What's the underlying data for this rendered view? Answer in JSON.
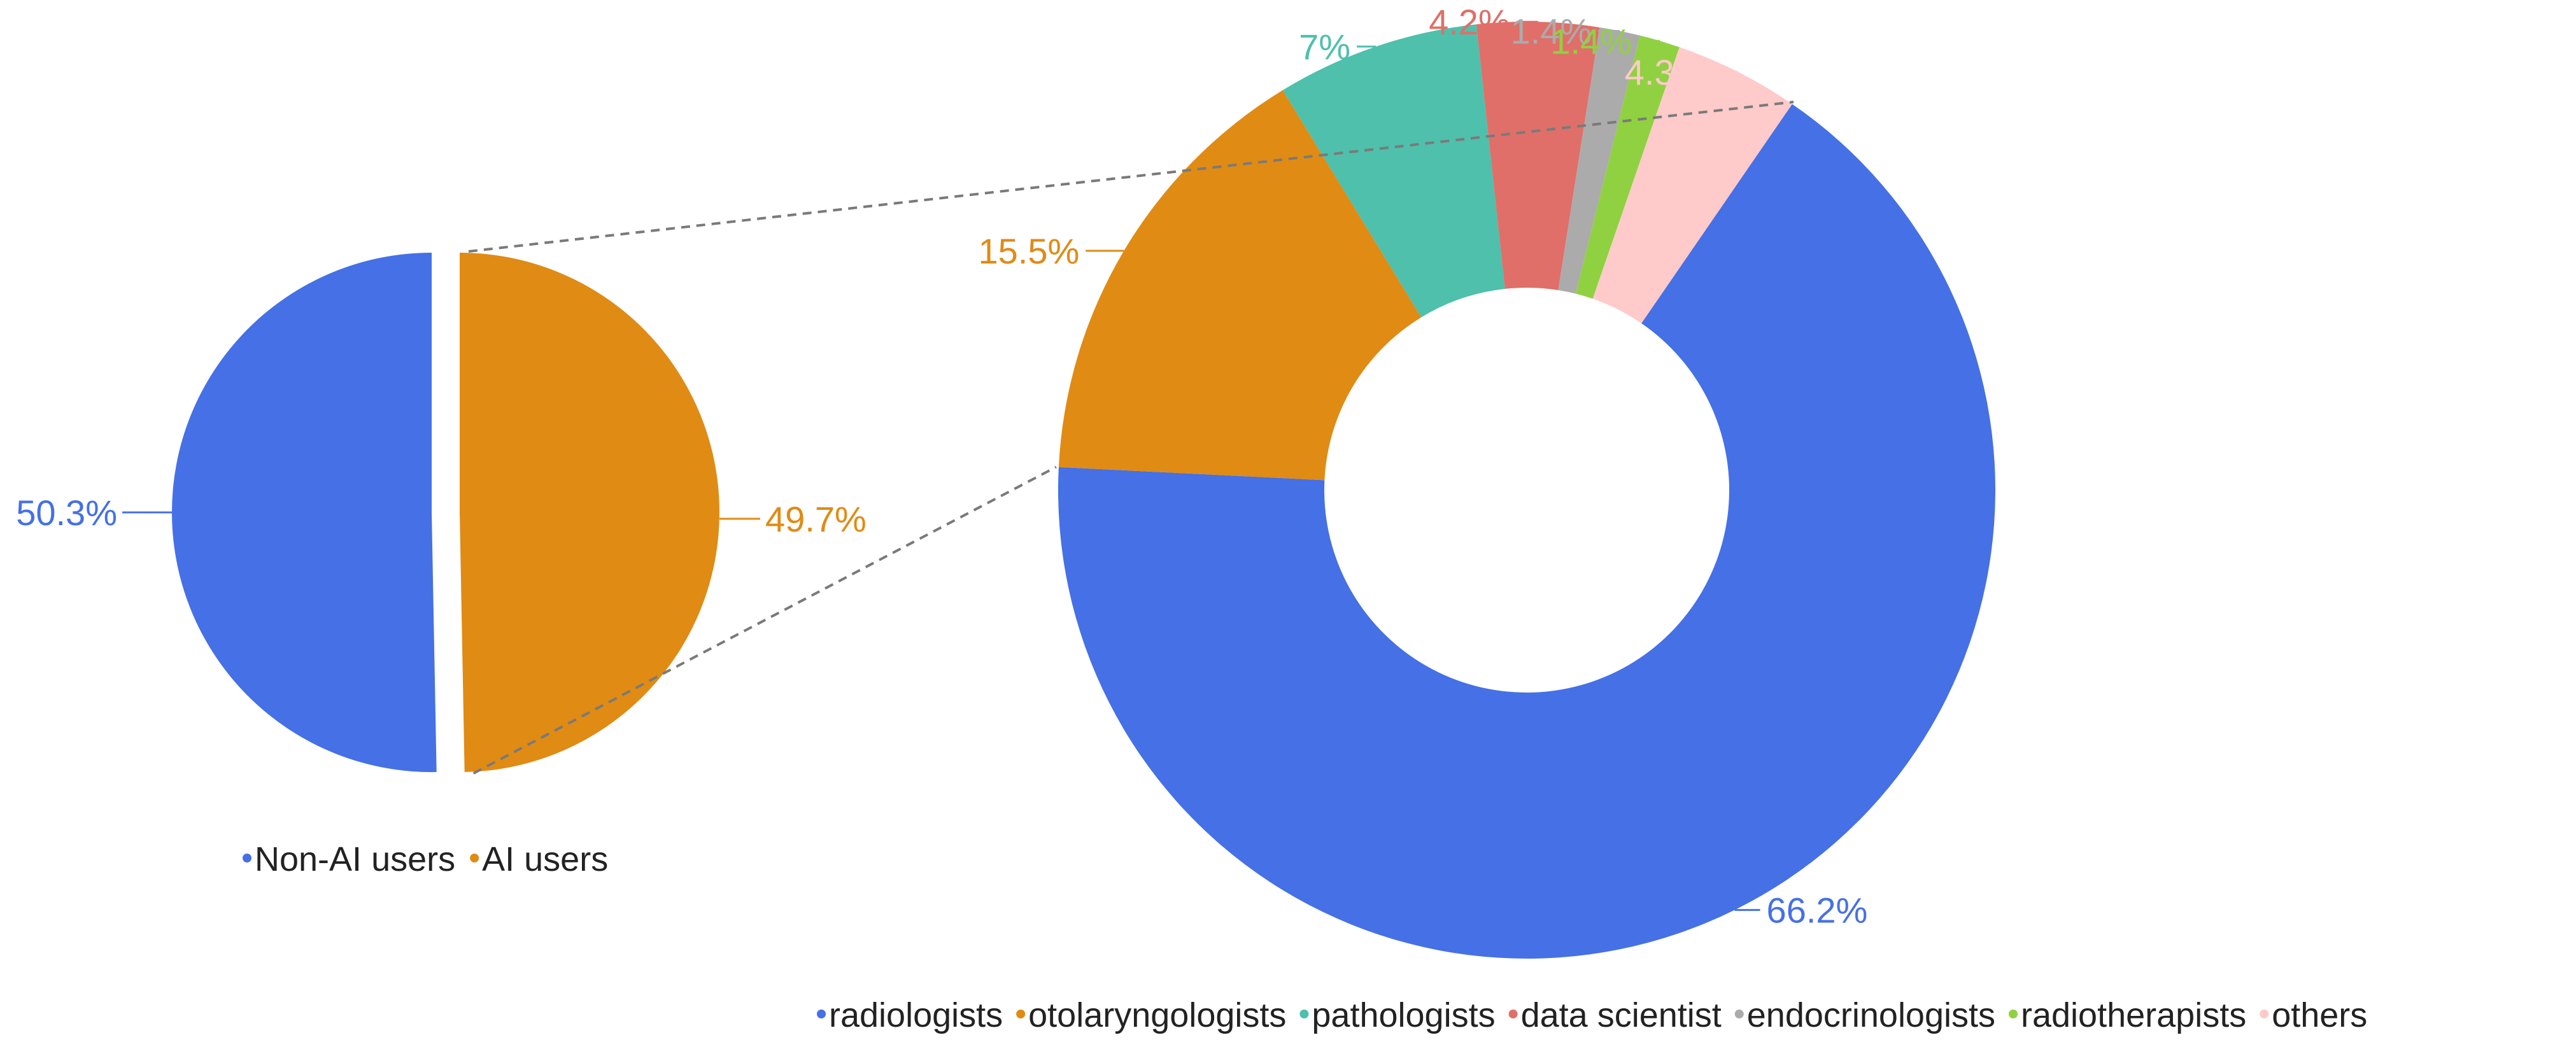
{
  "chart_data": [
    {
      "type": "pie",
      "categories": [
        "Non-AI users",
        "AI users"
      ],
      "values": [
        50.3,
        49.7
      ],
      "labels": [
        "50.3%",
        "49.7%"
      ],
      "colors": [
        "#4570E6",
        "#E08B14"
      ],
      "legend": {
        "placement": "bottom",
        "entries": [
          "Non-AI users",
          "AI users"
        ]
      }
    },
    {
      "type": "pie",
      "style": "donut",
      "categories": [
        "radiologists",
        "otolaryngologists",
        "pathologists",
        "data scientist",
        "endocrinologists",
        "radiotherapists",
        "others"
      ],
      "values": [
        66.2,
        15.5,
        7,
        4.2,
        1.4,
        1.4,
        4.3
      ],
      "labels": [
        "66.2%",
        "15.5%",
        "7%",
        "4.2%",
        "1.4%",
        "1.4%",
        "4.3%"
      ],
      "colors": [
        "#4570E6",
        "#E08B14",
        "#4EC0AC",
        "#E06F69",
        "#ABABAB",
        "#90D141",
        "#FFCACA"
      ],
      "legend": {
        "placement": "bottom",
        "entries": [
          "radiologists",
          "otolaryngologists",
          "pathologists",
          "data scientist",
          "endocrinologists",
          "radiotherapists",
          "others"
        ]
      }
    }
  ]
}
